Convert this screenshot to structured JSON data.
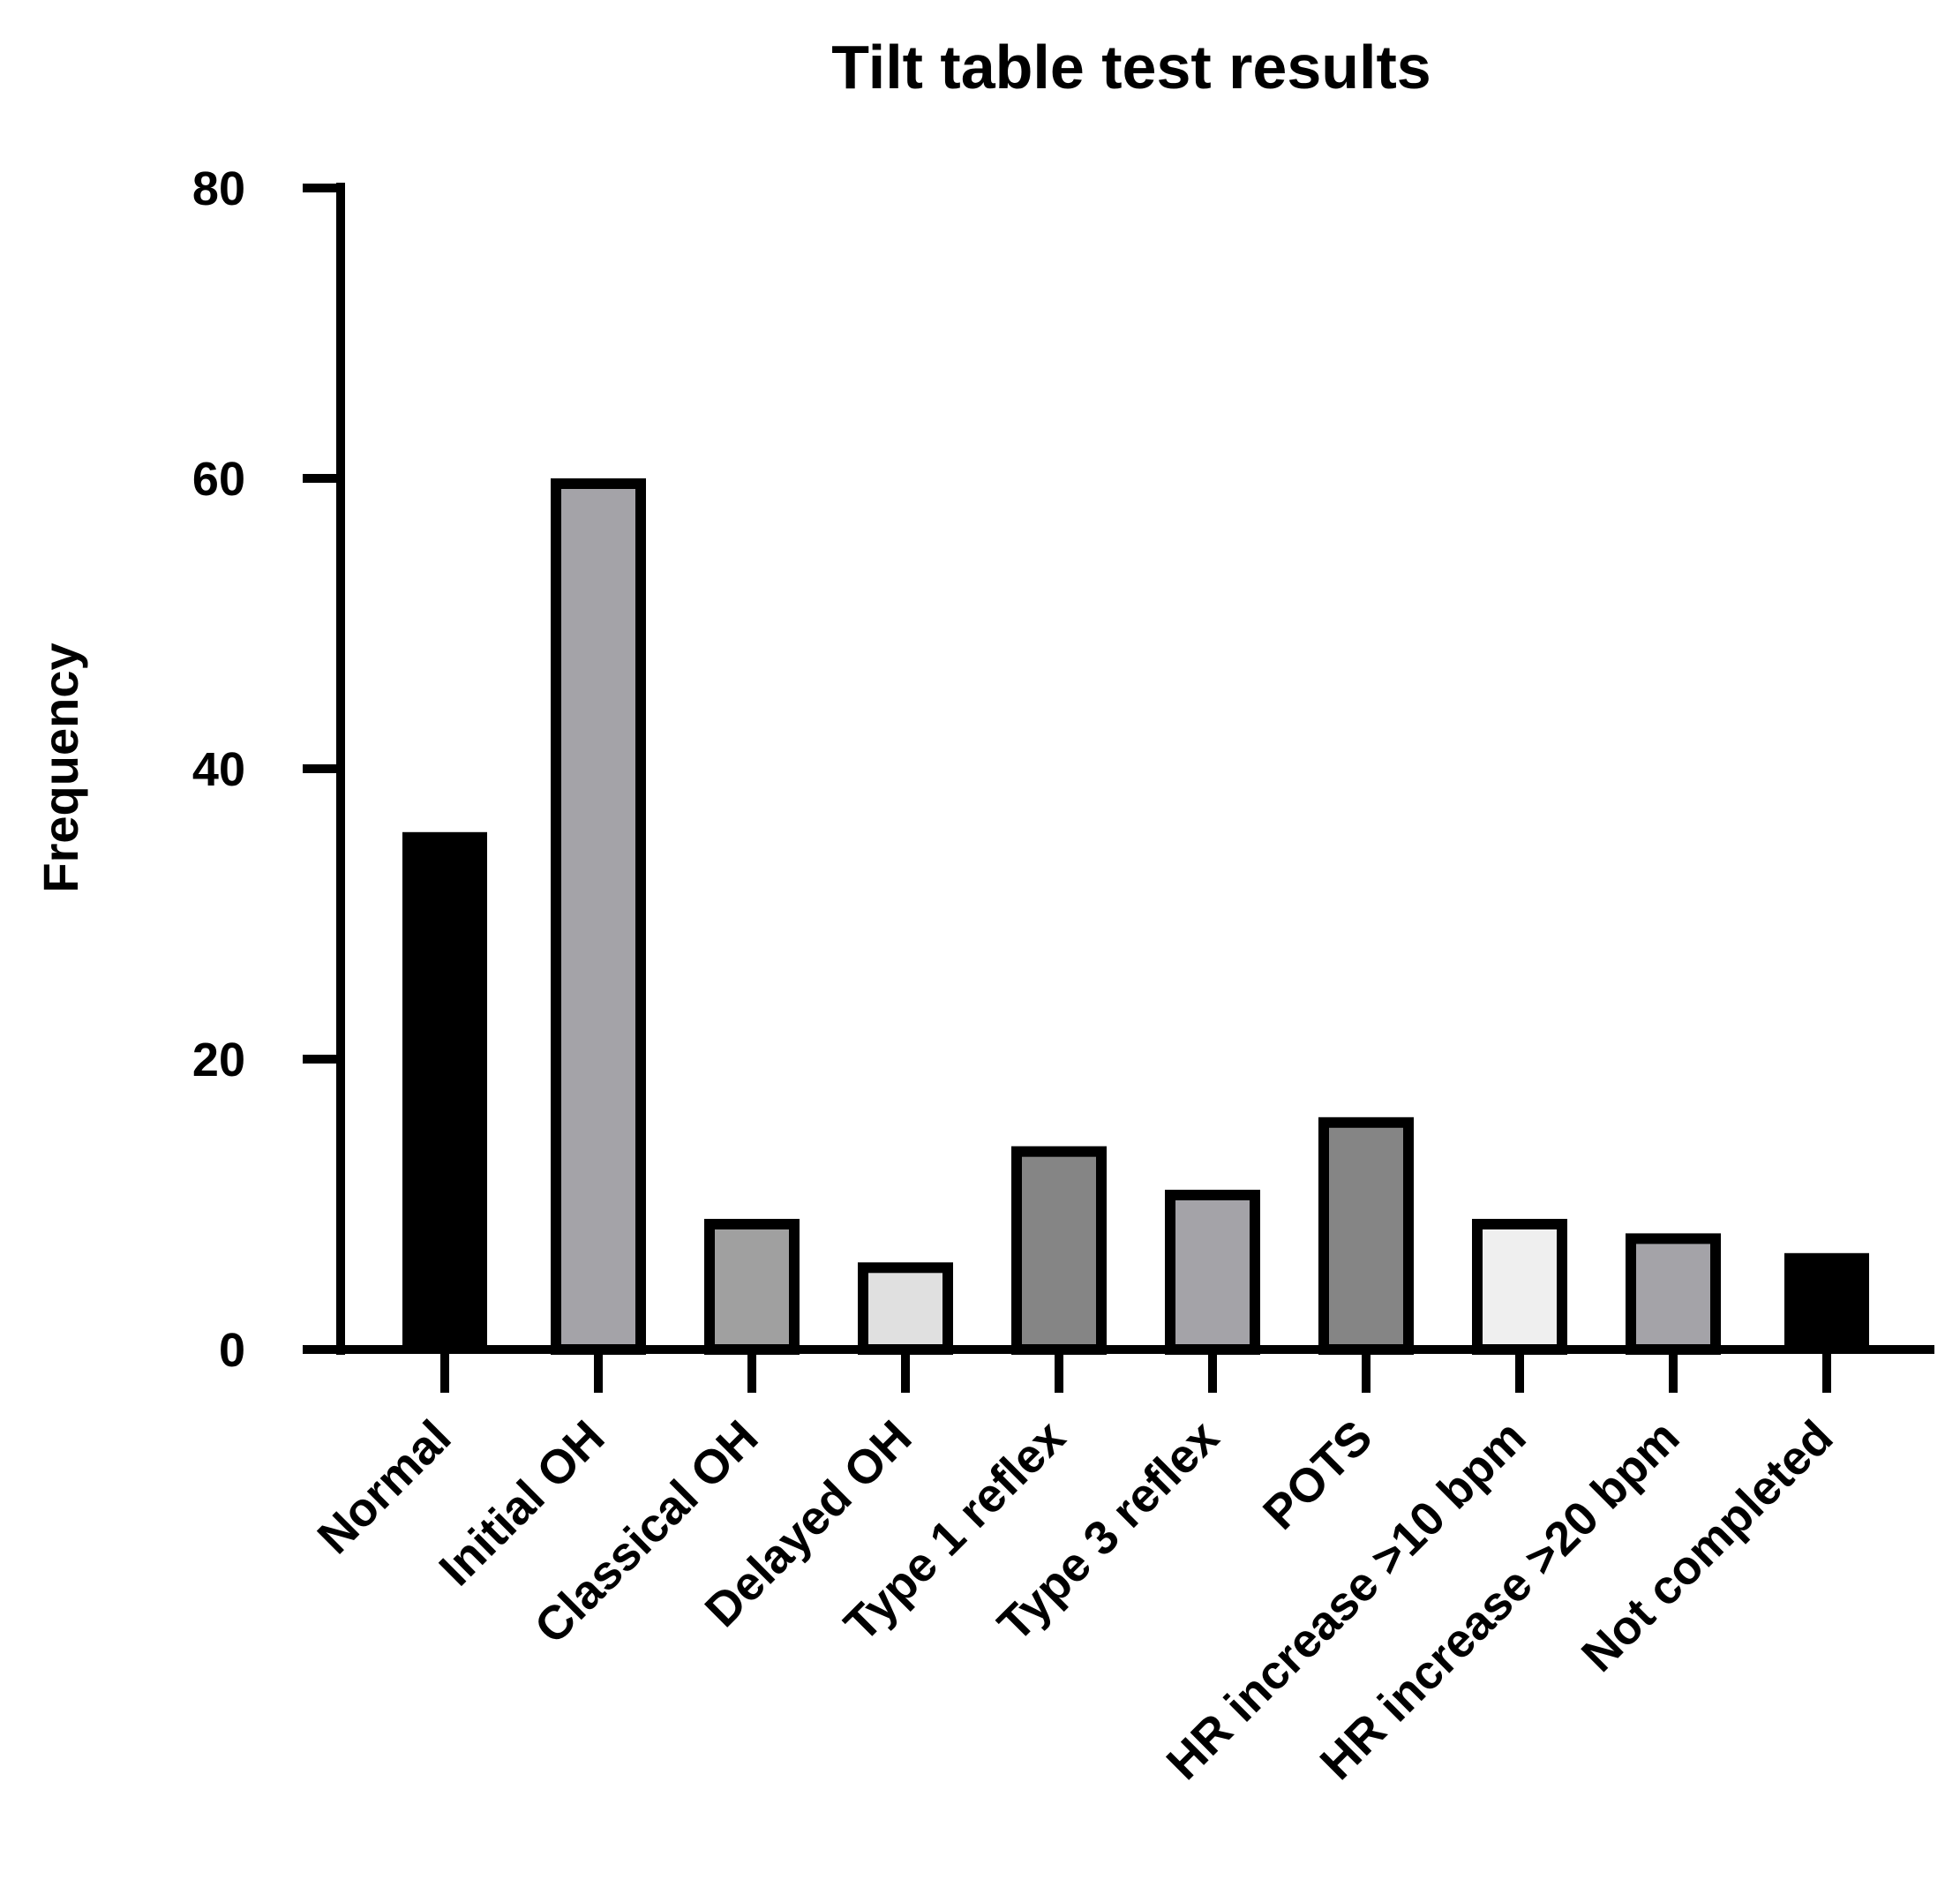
{
  "chart_data": {
    "type": "bar",
    "title": "Tilt table test results",
    "xlabel": "",
    "ylabel": "Frequency",
    "ylim": [
      0,
      80
    ],
    "yticks": [
      0,
      20,
      40,
      60,
      80
    ],
    "grid": false,
    "legend": "none",
    "categories": [
      "Normal",
      "Initial OH",
      "Classical OH",
      "Delayed OH",
      "Type 1 reflex",
      "Type 3 reflex",
      "POTS",
      "HR increase >10 bpm",
      "HR increase >20 bpm",
      "Not completed"
    ],
    "values": [
      36,
      60,
      9,
      6,
      14,
      11,
      16,
      9,
      8,
      7
    ],
    "bar_colors": [
      "#000000",
      "#a4a3a8",
      "#a0a0a0",
      "#e0e0e0",
      "#858585",
      "#a4a3a8",
      "#858585",
      "#efefef",
      "#a4a3a8",
      "#000000"
    ]
  }
}
